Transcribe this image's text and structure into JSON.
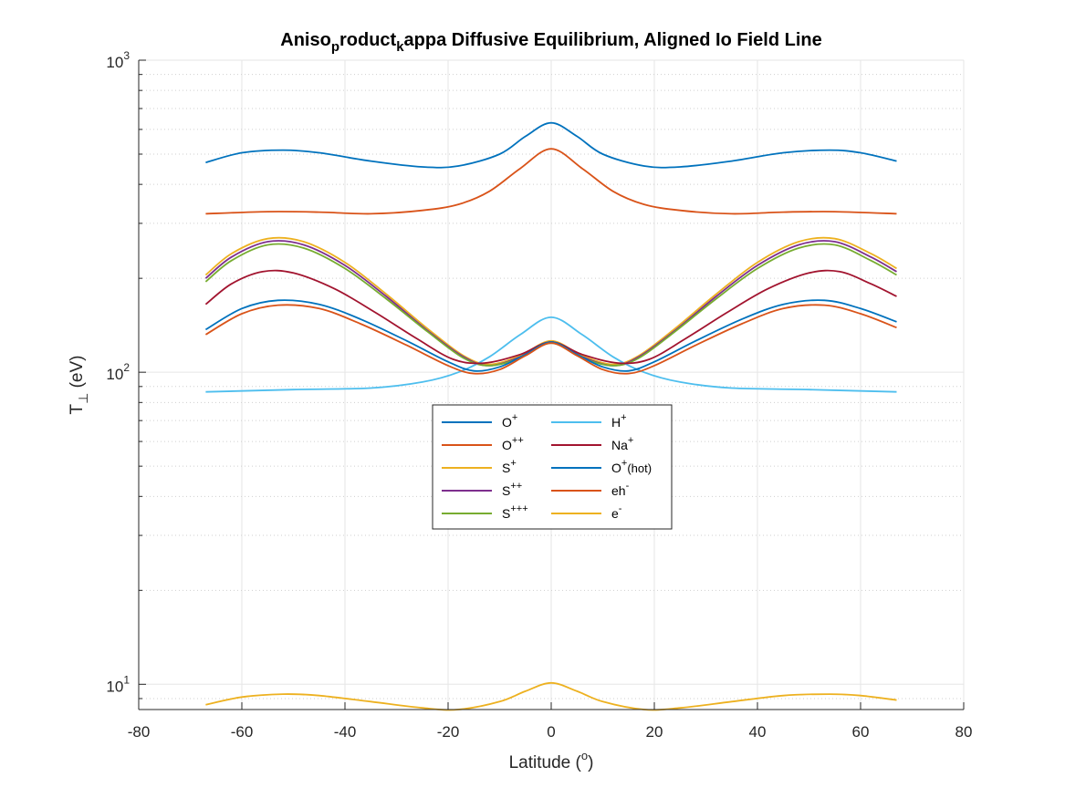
{
  "chart_data": {
    "type": "line",
    "title": {
      "parts": [
        {
          "text": "Aniso",
          "sub": false
        },
        {
          "text": "p",
          "sub": true
        },
        {
          "text": "roduct",
          "sub": false
        },
        {
          "text": "k",
          "sub": true
        },
        {
          "text": "appa Diffusive Equilibrium, Aligned Io Field Line",
          "sub": false
        }
      ]
    },
    "xlabel": {
      "main": "Latitude (",
      "sup": "o",
      "end": ")"
    },
    "ylabel": {
      "main": "T",
      "sub": "⊥",
      "end": " (eV)"
    },
    "xlim": [
      -80,
      80
    ],
    "ylim": [
      8.3,
      1000
    ],
    "yscale": "log",
    "grid": true,
    "minor_grid": true,
    "xticks": [
      -80,
      -60,
      -40,
      -20,
      0,
      20,
      40,
      60,
      80
    ],
    "xtick_labels": [
      "-80",
      "-60",
      "-40",
      "-20",
      "0",
      "20",
      "40",
      "60",
      "80"
    ],
    "yticks": [
      {
        "value": 10,
        "base": "10",
        "exp": "1"
      },
      {
        "value": 100,
        "base": "10",
        "exp": "2"
      },
      {
        "value": 1000,
        "base": "10",
        "exp": "3"
      }
    ],
    "legend": {
      "placement": "center",
      "columns": 2
    },
    "series": [
      {
        "name": {
          "base": "O",
          "sup": "+",
          "tail": ""
        },
        "color": "#0072BD",
        "points": [
          [
            -67,
            470
          ],
          [
            -60,
            505
          ],
          [
            -52,
            515
          ],
          [
            -45,
            505
          ],
          [
            -35,
            475
          ],
          [
            -25,
            455
          ],
          [
            -18,
            458
          ],
          [
            -10,
            500
          ],
          [
            -5,
            570
          ],
          [
            0,
            630
          ],
          [
            5,
            570
          ],
          [
            10,
            500
          ],
          [
            18,
            458
          ],
          [
            25,
            455
          ],
          [
            35,
            475
          ],
          [
            45,
            505
          ],
          [
            54,
            515
          ],
          [
            60,
            505
          ],
          [
            67,
            475
          ]
        ]
      },
      {
        "name": {
          "base": "O",
          "sup": "++",
          "tail": ""
        },
        "color": "#D95319",
        "points": [
          [
            -67,
            322
          ],
          [
            -55,
            327
          ],
          [
            -45,
            326
          ],
          [
            -35,
            322
          ],
          [
            -25,
            330
          ],
          [
            -18,
            345
          ],
          [
            -12,
            380
          ],
          [
            -6,
            450
          ],
          [
            0,
            520
          ],
          [
            6,
            450
          ],
          [
            12,
            380
          ],
          [
            18,
            345
          ],
          [
            25,
            330
          ],
          [
            35,
            322
          ],
          [
            45,
            326
          ],
          [
            55,
            327
          ],
          [
            67,
            322
          ]
        ]
      },
      {
        "name": {
          "base": "S",
          "sup": "+",
          "tail": ""
        },
        "color": "#EDB120",
        "points": [
          [
            -67,
            205
          ],
          [
            -62,
            240
          ],
          [
            -55,
            268
          ],
          [
            -48,
            262
          ],
          [
            -40,
            225
          ],
          [
            -32,
            178
          ],
          [
            -24,
            138
          ],
          [
            -17,
            113
          ],
          [
            -12,
            106
          ],
          [
            -6,
            113
          ],
          [
            0,
            126
          ],
          [
            6,
            113
          ],
          [
            12,
            106
          ],
          [
            17,
            113
          ],
          [
            24,
            138
          ],
          [
            32,
            178
          ],
          [
            40,
            225
          ],
          [
            48,
            262
          ],
          [
            55,
            268
          ],
          [
            62,
            240
          ],
          [
            67,
            215
          ]
        ]
      },
      {
        "name": {
          "base": "S",
          "sup": "++",
          "tail": ""
        },
        "color": "#7E2F8E",
        "points": [
          [
            -67,
            200
          ],
          [
            -62,
            234
          ],
          [
            -55,
            262
          ],
          [
            -48,
            256
          ],
          [
            -40,
            220
          ],
          [
            -32,
            175
          ],
          [
            -24,
            136
          ],
          [
            -17,
            112
          ],
          [
            -12,
            105
          ],
          [
            -6,
            112
          ],
          [
            0,
            125
          ],
          [
            6,
            112
          ],
          [
            12,
            105
          ],
          [
            17,
            112
          ],
          [
            24,
            136
          ],
          [
            32,
            175
          ],
          [
            40,
            220
          ],
          [
            48,
            256
          ],
          [
            55,
            262
          ],
          [
            62,
            234
          ],
          [
            67,
            210
          ]
        ]
      },
      {
        "name": {
          "base": "S",
          "sup": "+++",
          "tail": ""
        },
        "color": "#77AC30",
        "points": [
          [
            -67,
            195
          ],
          [
            -62,
            228
          ],
          [
            -55,
            256
          ],
          [
            -48,
            250
          ],
          [
            -40,
            215
          ],
          [
            -32,
            172
          ],
          [
            -24,
            135
          ],
          [
            -17,
            111
          ],
          [
            -12,
            105
          ],
          [
            -6,
            111
          ],
          [
            0,
            124
          ],
          [
            6,
            111
          ],
          [
            12,
            105
          ],
          [
            17,
            111
          ],
          [
            24,
            135
          ],
          [
            32,
            172
          ],
          [
            40,
            215
          ],
          [
            48,
            250
          ],
          [
            55,
            256
          ],
          [
            62,
            228
          ],
          [
            67,
            205
          ]
        ]
      },
      {
        "name": {
          "base": "H",
          "sup": "+",
          "tail": ""
        },
        "color": "#4DBEEE",
        "points": [
          [
            -67,
            86.5
          ],
          [
            -50,
            88
          ],
          [
            -35,
            89
          ],
          [
            -25,
            93
          ],
          [
            -18,
            100
          ],
          [
            -12,
            112
          ],
          [
            -6,
            132
          ],
          [
            0,
            150
          ],
          [
            6,
            132
          ],
          [
            12,
            112
          ],
          [
            18,
            100
          ],
          [
            25,
            93
          ],
          [
            35,
            89
          ],
          [
            50,
            88
          ],
          [
            67,
            86.5
          ]
        ]
      },
      {
        "name": {
          "base": "Na",
          "sup": "+",
          "tail": ""
        },
        "color": "#A2142F",
        "points": [
          [
            -67,
            165
          ],
          [
            -62,
            192
          ],
          [
            -56,
            210
          ],
          [
            -50,
            208
          ],
          [
            -42,
            185
          ],
          [
            -34,
            155
          ],
          [
            -26,
            128
          ],
          [
            -19,
            110
          ],
          [
            -13,
            107
          ],
          [
            -6,
            114
          ],
          [
            0,
            125
          ],
          [
            6,
            114
          ],
          [
            13,
            107
          ],
          [
            19,
            110
          ],
          [
            26,
            128
          ],
          [
            34,
            155
          ],
          [
            42,
            185
          ],
          [
            50,
            208
          ],
          [
            56,
            210
          ],
          [
            62,
            192
          ],
          [
            67,
            175
          ]
        ]
      },
      {
        "name": {
          "base": "O",
          "sup": "+",
          "tail": "(hot)"
        },
        "color": "#0072BD",
        "points": [
          [
            -67,
            137
          ],
          [
            -60,
            160
          ],
          [
            -53,
            170
          ],
          [
            -45,
            165
          ],
          [
            -37,
            148
          ],
          [
            -28,
            126
          ],
          [
            -20,
            108
          ],
          [
            -15,
            101
          ],
          [
            -10,
            104
          ],
          [
            -5,
            114
          ],
          [
            0,
            125
          ],
          [
            5,
            114
          ],
          [
            10,
            104
          ],
          [
            15,
            101
          ],
          [
            20,
            108
          ],
          [
            28,
            126
          ],
          [
            37,
            148
          ],
          [
            45,
            165
          ],
          [
            53,
            170
          ],
          [
            60,
            160
          ],
          [
            67,
            145
          ]
        ]
      },
      {
        "name": {
          "base": "eh",
          "sup": "-",
          "tail": ""
        },
        "color": "#D95319",
        "points": [
          [
            -67,
            132
          ],
          [
            -60,
            154
          ],
          [
            -53,
            164
          ],
          [
            -45,
            160
          ],
          [
            -37,
            143
          ],
          [
            -28,
            122
          ],
          [
            -20,
            105
          ],
          [
            -15,
            99
          ],
          [
            -10,
            102
          ],
          [
            -5,
            113
          ],
          [
            0,
            124
          ],
          [
            5,
            113
          ],
          [
            10,
            102
          ],
          [
            15,
            99
          ],
          [
            20,
            105
          ],
          [
            28,
            122
          ],
          [
            37,
            143
          ],
          [
            45,
            160
          ],
          [
            53,
            164
          ],
          [
            60,
            154
          ],
          [
            67,
            139
          ]
        ]
      },
      {
        "name": {
          "base": "e",
          "sup": "-",
          "tail": ""
        },
        "color": "#EDB120",
        "points": [
          [
            -67,
            8.6
          ],
          [
            -60,
            9.1
          ],
          [
            -52,
            9.3
          ],
          [
            -45,
            9.2
          ],
          [
            -35,
            8.8
          ],
          [
            -25,
            8.4
          ],
          [
            -18,
            8.3
          ],
          [
            -10,
            8.8
          ],
          [
            -5,
            9.5
          ],
          [
            0,
            10.1
          ],
          [
            5,
            9.5
          ],
          [
            10,
            8.8
          ],
          [
            18,
            8.3
          ],
          [
            25,
            8.4
          ],
          [
            35,
            8.8
          ],
          [
            45,
            9.2
          ],
          [
            54,
            9.3
          ],
          [
            60,
            9.2
          ],
          [
            67,
            8.9
          ]
        ]
      }
    ]
  }
}
